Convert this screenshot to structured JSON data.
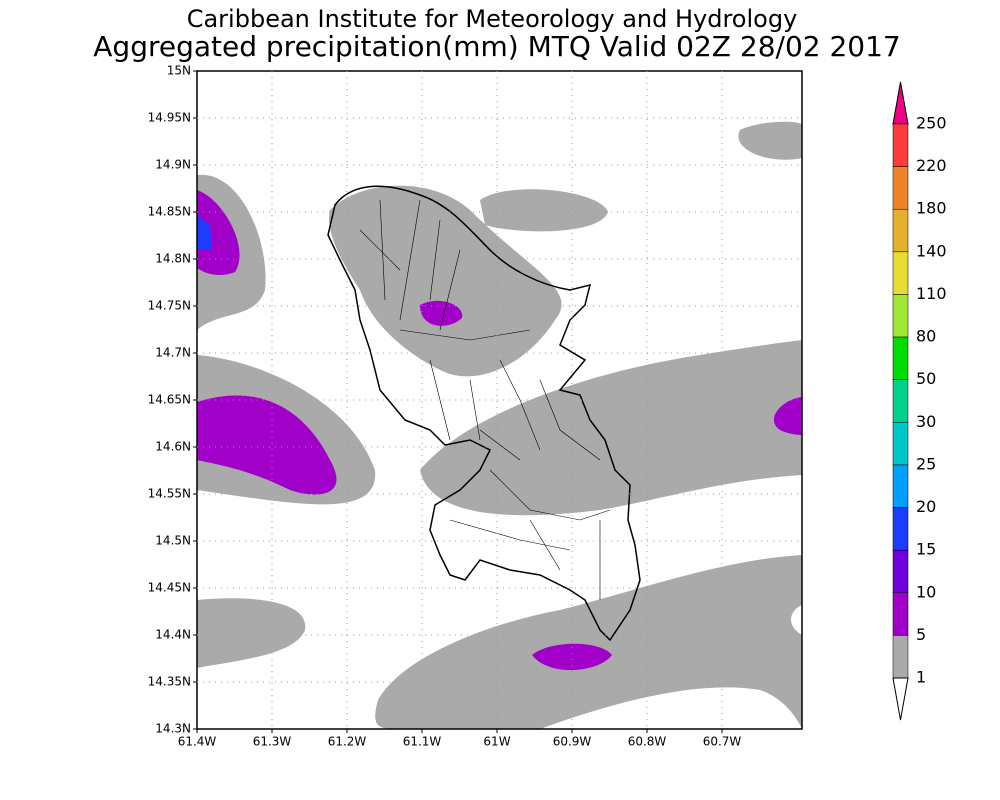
{
  "title": [
    "Caribbean Institute for Meteorology and Hydrology",
    "Aggregated precipitation(mm) MTQ Valid 02Z 28/02 2017"
  ],
  "map": {
    "lat_labels": [
      "15N",
      "14.95N",
      "14.9N",
      "14.85N",
      "14.8N",
      "14.75N",
      "14.7N",
      "14.65N",
      "14.6N",
      "14.55N",
      "14.5N",
      "14.45N",
      "14.4N",
      "14.35N",
      "14.3N"
    ],
    "lon_labels": [
      "61.4W",
      "61.3W",
      "61.2W",
      "61.1W",
      "61W",
      "60.9W",
      "60.8W",
      "60.7W"
    ]
  },
  "legend": {
    "labels": [
      "250",
      "220",
      "180",
      "140",
      "110",
      "80",
      "50",
      "30",
      "25",
      "20",
      "15",
      "10",
      "5",
      "1"
    ],
    "colors": [
      "#f00082",
      "#fa3c3c",
      "#f08228",
      "#e6af2d",
      "#e6dc32",
      "#a0e632",
      "#00dc00",
      "#00d28c",
      "#00c8c8",
      "#00a0ff",
      "#1e3cff",
      "#6e00dc",
      "#a000c8",
      "#aaaaaa",
      "#ffffff"
    ]
  }
}
